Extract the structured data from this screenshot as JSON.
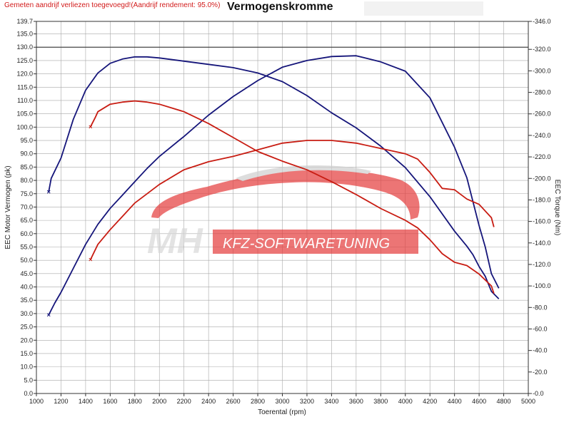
{
  "header": {
    "note": "Gemeten aandrijf verliezen toegevoegd!(Aandrijf rendement: 95.0%)",
    "title": "Vermogenskromme"
  },
  "watermark": {
    "logo_text": "MH",
    "banner_text": "KFZ-SOFTWARETUNING"
  },
  "colors": {
    "stock": "#15157a",
    "tuned": "#c81c12",
    "grid": "#a8a8a8",
    "watermark_red": "#e43b3b",
    "watermark_gray": "#cfcfcf"
  },
  "chart_data": {
    "type": "line",
    "xlabel": "Toerental (rpm)",
    "ylabel_left": "EEC Motor Vermogen (pk)",
    "ylabel_right": "EEC Torque (Nm)",
    "xlim": [
      1000,
      5000
    ],
    "ylim_left": [
      0,
      139.7
    ],
    "ylim_right": [
      0,
      346
    ],
    "x_ticks": [
      1000,
      1200,
      1400,
      1600,
      1800,
      2000,
      2200,
      2400,
      2600,
      2800,
      3000,
      3200,
      3400,
      3600,
      3800,
      4000,
      4200,
      4400,
      4600,
      4800,
      5000
    ],
    "y_left_ticks": [
      "139.7",
      "135.0",
      "130.0",
      "125.0",
      "120.0",
      "115.0",
      "110.0",
      "105.0",
      "100.0",
      "95.0",
      "90.0",
      "85.0",
      "80.0",
      "75.0",
      "70.0",
      "65.0",
      "60.0",
      "55.0",
      "50.0",
      "45.0",
      "40.0",
      "35.0",
      "30.0",
      "25.0",
      "20.0",
      "15.0",
      "10.0",
      "5.0",
      "0.0"
    ],
    "y_right_ticks": [
      "346.0",
      "320.0",
      "300.0",
      "280.0",
      "260.0",
      "240.0",
      "220.0",
      "200.0",
      "180.0",
      "160.0",
      "140.0",
      "120.0",
      "100.0",
      "80.0",
      "60.0",
      "40.0",
      "20.0",
      "0.0"
    ],
    "reference_line": {
      "axis": "left",
      "value": 130
    },
    "grid": true,
    "series": [
      {
        "axis": "left",
        "color": "#15157a",
        "role": "stock power",
        "x": [
          1100,
          1150,
          1200,
          1300,
          1400,
          1500,
          1600,
          1700,
          1800,
          1900,
          2000,
          2200,
          2400,
          2600,
          2800,
          3000,
          3200,
          3400,
          3600,
          3800,
          4000,
          4200,
          4400,
          4500,
          4550,
          4600,
          4650,
          4700,
          4760
        ],
        "y": [
          29.5,
          34,
          38,
          47,
          56,
          63.5,
          69.5,
          74.5,
          79.5,
          84.5,
          89,
          96.5,
          104.5,
          111.5,
          117.5,
          122.5,
          125,
          126.5,
          126.8,
          124.5,
          121,
          111,
          92.5,
          81,
          72,
          63,
          55,
          45,
          39.5
        ]
      },
      {
        "axis": "right",
        "color": "#15157a",
        "role": "stock torque",
        "x": [
          1100,
          1120,
          1200,
          1300,
          1400,
          1500,
          1600,
          1700,
          1800,
          1900,
          2000,
          2200,
          2400,
          2600,
          2800,
          3000,
          3200,
          3400,
          3600,
          3800,
          4000,
          4200,
          4400,
          4500,
          4550,
          4600,
          4650,
          4700,
          4760
        ],
        "y": [
          187.5,
          200,
          219,
          255,
          282,
          298,
          307,
          311,
          313,
          313,
          312,
          309,
          306,
          303,
          298,
          290,
          277,
          261,
          247,
          230,
          210,
          183,
          151,
          137,
          129,
          118,
          109,
          95,
          88
        ]
      },
      {
        "axis": "left",
        "color": "#c81c12",
        "role": "tuned power",
        "x": [
          1440,
          1500,
          1600,
          1700,
          1800,
          2000,
          2200,
          2400,
          2600,
          2800,
          3000,
          3200,
          3400,
          3600,
          3800,
          4000,
          4100,
          4200,
          4300,
          4400,
          4500,
          4600,
          4700,
          4720
        ],
        "y": [
          50.3,
          56,
          61.5,
          66.5,
          71.5,
          78.5,
          84,
          87,
          89,
          91.5,
          94,
          95,
          95,
          94,
          92,
          90,
          88,
          83,
          77,
          76.5,
          73,
          71,
          66,
          62.5
        ]
      },
      {
        "axis": "right",
        "color": "#c81c12",
        "role": "tuned torque",
        "x": [
          1440,
          1480,
          1500,
          1600,
          1700,
          1800,
          1900,
          2000,
          2200,
          2400,
          2600,
          2800,
          3000,
          3200,
          3400,
          3600,
          3800,
          4000,
          4100,
          4200,
          4300,
          4400,
          4500,
          4600,
          4700,
          4720
        ],
        "y": [
          248,
          257,
          262,
          269,
          271,
          272,
          271,
          269,
          262,
          251,
          238,
          225,
          216,
          208,
          197,
          185,
          172,
          161,
          154,
          143,
          130,
          122,
          119,
          111,
          100,
          93
        ]
      }
    ]
  }
}
